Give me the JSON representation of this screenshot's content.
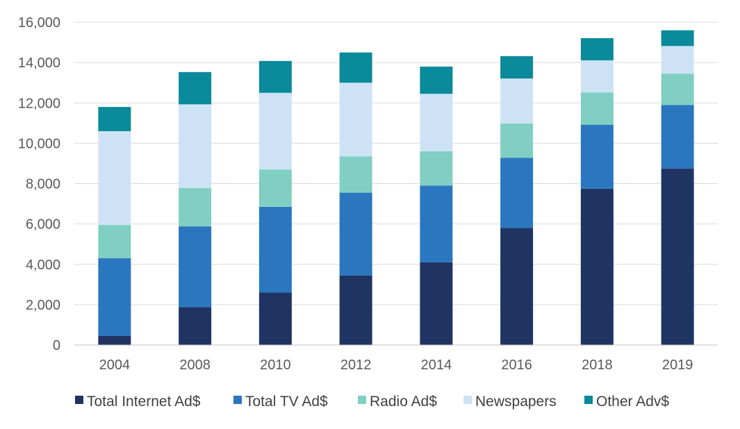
{
  "chart_data": {
    "type": "bar",
    "stacked": true,
    "title": "",
    "xlabel": "",
    "ylabel": "",
    "categories": [
      "2004",
      "2008",
      "2010",
      "2012",
      "2014",
      "2016",
      "2018",
      "2019"
    ],
    "ylim": [
      0,
      16000
    ],
    "yticks": [
      "0",
      "2,000",
      "4,000",
      "6,000",
      "8,000",
      "10,000",
      "12,000",
      "14,000",
      "16,000"
    ],
    "ytick_values": [
      0,
      2000,
      4000,
      6000,
      8000,
      10000,
      12000,
      14000,
      16000
    ],
    "grid": true,
    "legend_position": "bottom",
    "series": [
      {
        "name": "Total Internet Ad$",
        "color": "#1f3462",
        "values": [
          450,
          1880,
          2600,
          3450,
          4100,
          5800,
          7750,
          8750
        ]
      },
      {
        "name": "Total TV Ad$",
        "color": "#2a77c0",
        "values": [
          3850,
          4000,
          4250,
          4100,
          3800,
          3480,
          3170,
          3150
        ]
      },
      {
        "name": "Radio Ad$",
        "color": "#80cfc2",
        "values": [
          1650,
          1900,
          1850,
          1800,
          1700,
          1700,
          1600,
          1550
        ]
      },
      {
        "name": "Newspapers",
        "color": "#cde3f5",
        "values": [
          4650,
          4150,
          3800,
          3650,
          2850,
          2230,
          1590,
          1370
        ]
      },
      {
        "name": "Other Adv$",
        "color": "#0a8a9a",
        "values": [
          1200,
          1600,
          1580,
          1500,
          1350,
          1110,
          1100,
          780
        ]
      }
    ]
  }
}
